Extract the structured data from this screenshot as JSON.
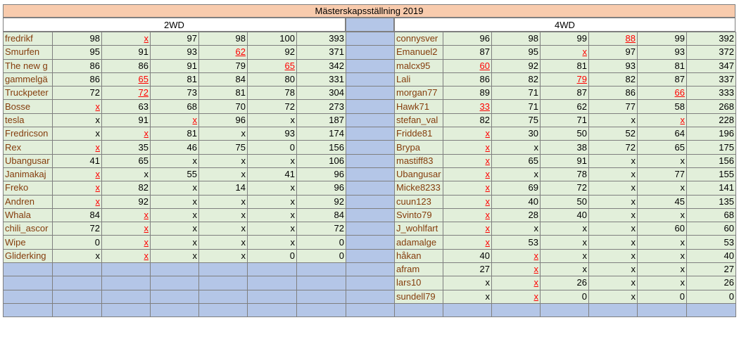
{
  "sheet": {
    "title": "Mästerskapsställning 2019",
    "left_header": "2WD",
    "right_header": "4WD",
    "left_rows": [
      [
        {
          "t": "fredrikf"
        },
        {
          "t": "98"
        },
        {
          "t": "x",
          "r": 1
        },
        {
          "t": "97"
        },
        {
          "t": "98"
        },
        {
          "t": "100"
        },
        {
          "t": "393"
        }
      ],
      [
        {
          "t": "Smurfen"
        },
        {
          "t": "95"
        },
        {
          "t": "91"
        },
        {
          "t": "93"
        },
        {
          "t": "62",
          "r": 1
        },
        {
          "t": "92"
        },
        {
          "t": "371"
        }
      ],
      [
        {
          "t": "The new g"
        },
        {
          "t": "86"
        },
        {
          "t": "86"
        },
        {
          "t": "91"
        },
        {
          "t": "79"
        },
        {
          "t": "65",
          "r": 1
        },
        {
          "t": "342"
        }
      ],
      [
        {
          "t": "gammelgä"
        },
        {
          "t": "86"
        },
        {
          "t": "65",
          "r": 1
        },
        {
          "t": "81"
        },
        {
          "t": "84"
        },
        {
          "t": "80"
        },
        {
          "t": "331"
        }
      ],
      [
        {
          "t": "Truckpeter"
        },
        {
          "t": "72"
        },
        {
          "t": "72",
          "r": 1
        },
        {
          "t": "73"
        },
        {
          "t": "81"
        },
        {
          "t": "78"
        },
        {
          "t": "304"
        }
      ],
      [
        {
          "t": "Bosse"
        },
        {
          "t": "x",
          "r": 1
        },
        {
          "t": "63"
        },
        {
          "t": "68"
        },
        {
          "t": "70"
        },
        {
          "t": "72"
        },
        {
          "t": "273"
        }
      ],
      [
        {
          "t": "tesla"
        },
        {
          "t": "x"
        },
        {
          "t": "91"
        },
        {
          "t": "x",
          "r": 1
        },
        {
          "t": "96"
        },
        {
          "t": "x"
        },
        {
          "t": "187"
        }
      ],
      [
        {
          "t": "Fredricson"
        },
        {
          "t": "x"
        },
        {
          "t": "x",
          "r": 1
        },
        {
          "t": "81"
        },
        {
          "t": "x"
        },
        {
          "t": "93"
        },
        {
          "t": "174"
        }
      ],
      [
        {
          "t": "Rex"
        },
        {
          "t": "x",
          "r": 1
        },
        {
          "t": "35"
        },
        {
          "t": "46"
        },
        {
          "t": "75"
        },
        {
          "t": "0"
        },
        {
          "t": "156"
        }
      ],
      [
        {
          "t": "Ubangusar"
        },
        {
          "t": "41"
        },
        {
          "t": "65"
        },
        {
          "t": "x"
        },
        {
          "t": "x"
        },
        {
          "t": "x"
        },
        {
          "t": "106"
        }
      ],
      [
        {
          "t": "Janimakaj"
        },
        {
          "t": "x",
          "r": 1
        },
        {
          "t": "x"
        },
        {
          "t": "55"
        },
        {
          "t": "x"
        },
        {
          "t": "41"
        },
        {
          "t": "96"
        }
      ],
      [
        {
          "t": "Freko"
        },
        {
          "t": "x",
          "r": 1
        },
        {
          "t": "82"
        },
        {
          "t": "x"
        },
        {
          "t": "14"
        },
        {
          "t": "x"
        },
        {
          "t": "96"
        }
      ],
      [
        {
          "t": "Andren"
        },
        {
          "t": "x",
          "r": 1
        },
        {
          "t": "92"
        },
        {
          "t": "x"
        },
        {
          "t": "x"
        },
        {
          "t": "x"
        },
        {
          "t": "92"
        }
      ],
      [
        {
          "t": "Whala"
        },
        {
          "t": "84"
        },
        {
          "t": "x",
          "r": 1
        },
        {
          "t": "x"
        },
        {
          "t": "x"
        },
        {
          "t": "x"
        },
        {
          "t": "84"
        }
      ],
      [
        {
          "t": "chili_ascor"
        },
        {
          "t": "72"
        },
        {
          "t": "x",
          "r": 1
        },
        {
          "t": "x"
        },
        {
          "t": "x"
        },
        {
          "t": "x"
        },
        {
          "t": "72"
        }
      ],
      [
        {
          "t": "Wipe"
        },
        {
          "t": "0"
        },
        {
          "t": "x",
          "r": 1
        },
        {
          "t": "x"
        },
        {
          "t": "x"
        },
        {
          "t": "x"
        },
        {
          "t": "0"
        }
      ],
      [
        {
          "t": "Gliderking"
        },
        {
          "t": "x"
        },
        {
          "t": "x",
          "r": 1
        },
        {
          "t": "x"
        },
        {
          "t": "x"
        },
        {
          "t": "0"
        },
        {
          "t": "0"
        }
      ]
    ],
    "right_rows": [
      [
        {
          "t": "connysver"
        },
        {
          "t": "96"
        },
        {
          "t": "98"
        },
        {
          "t": "99"
        },
        {
          "t": "88",
          "r": 1
        },
        {
          "t": "99"
        },
        {
          "t": "392"
        }
      ],
      [
        {
          "t": "Emanuel2"
        },
        {
          "t": "87"
        },
        {
          "t": "95"
        },
        {
          "t": "x",
          "r": 1
        },
        {
          "t": "97"
        },
        {
          "t": "93"
        },
        {
          "t": "372"
        }
      ],
      [
        {
          "t": "malcx95"
        },
        {
          "t": "60",
          "r": 1
        },
        {
          "t": "92"
        },
        {
          "t": "81"
        },
        {
          "t": "93"
        },
        {
          "t": "81"
        },
        {
          "t": "347"
        }
      ],
      [
        {
          "t": "Lali"
        },
        {
          "t": "86"
        },
        {
          "t": "82"
        },
        {
          "t": "79",
          "r": 1
        },
        {
          "t": "82"
        },
        {
          "t": "87"
        },
        {
          "t": "337"
        }
      ],
      [
        {
          "t": "morgan77"
        },
        {
          "t": "89"
        },
        {
          "t": "71"
        },
        {
          "t": "87"
        },
        {
          "t": "86"
        },
        {
          "t": "66",
          "r": 1
        },
        {
          "t": "333"
        }
      ],
      [
        {
          "t": "Hawk71"
        },
        {
          "t": "33",
          "r": 1
        },
        {
          "t": "71"
        },
        {
          "t": "62"
        },
        {
          "t": "77"
        },
        {
          "t": "58"
        },
        {
          "t": "268"
        }
      ],
      [
        {
          "t": "stefan_val"
        },
        {
          "t": "82"
        },
        {
          "t": "75"
        },
        {
          "t": "71"
        },
        {
          "t": "x"
        },
        {
          "t": "x",
          "r": 1
        },
        {
          "t": "228"
        }
      ],
      [
        {
          "t": "Fridde81"
        },
        {
          "t": "x",
          "r": 1
        },
        {
          "t": "30"
        },
        {
          "t": "50"
        },
        {
          "t": "52"
        },
        {
          "t": "64"
        },
        {
          "t": "196"
        }
      ],
      [
        {
          "t": "Brypa"
        },
        {
          "t": "x",
          "r": 1
        },
        {
          "t": "x"
        },
        {
          "t": "38"
        },
        {
          "t": "72"
        },
        {
          "t": "65"
        },
        {
          "t": "175"
        }
      ],
      [
        {
          "t": "mastiff83"
        },
        {
          "t": "x",
          "r": 1
        },
        {
          "t": "65"
        },
        {
          "t": "91"
        },
        {
          "t": "x"
        },
        {
          "t": "x"
        },
        {
          "t": "156"
        }
      ],
      [
        {
          "t": "Ubangusar"
        },
        {
          "t": "x",
          "r": 1
        },
        {
          "t": "x"
        },
        {
          "t": "78"
        },
        {
          "t": "x"
        },
        {
          "t": "77"
        },
        {
          "t": "155"
        }
      ],
      [
        {
          "t": "Micke8233"
        },
        {
          "t": "x",
          "r": 1
        },
        {
          "t": "69"
        },
        {
          "t": "72"
        },
        {
          "t": "x"
        },
        {
          "t": "x"
        },
        {
          "t": "141"
        }
      ],
      [
        {
          "t": "cuun123"
        },
        {
          "t": "x",
          "r": 1
        },
        {
          "t": "40"
        },
        {
          "t": "50"
        },
        {
          "t": "x"
        },
        {
          "t": "45"
        },
        {
          "t": "135"
        }
      ],
      [
        {
          "t": "Svinto79"
        },
        {
          "t": "x",
          "r": 1
        },
        {
          "t": "28"
        },
        {
          "t": "40"
        },
        {
          "t": "x"
        },
        {
          "t": "x"
        },
        {
          "t": "68"
        }
      ],
      [
        {
          "t": "J_wohlfart"
        },
        {
          "t": "x",
          "r": 1
        },
        {
          "t": "x"
        },
        {
          "t": "x"
        },
        {
          "t": "x"
        },
        {
          "t": "60"
        },
        {
          "t": "60"
        }
      ],
      [
        {
          "t": "adamalge"
        },
        {
          "t": "x",
          "r": 1
        },
        {
          "t": "53"
        },
        {
          "t": "x"
        },
        {
          "t": "x"
        },
        {
          "t": "x"
        },
        {
          "t": "53"
        }
      ],
      [
        {
          "t": "håkan"
        },
        {
          "t": "40"
        },
        {
          "t": "x",
          "r": 1
        },
        {
          "t": "x"
        },
        {
          "t": "x"
        },
        {
          "t": "x"
        },
        {
          "t": "40"
        }
      ],
      [
        {
          "t": "afram"
        },
        {
          "t": "27"
        },
        {
          "t": "x",
          "r": 1
        },
        {
          "t": "x"
        },
        {
          "t": "x"
        },
        {
          "t": "x"
        },
        {
          "t": "27"
        }
      ],
      [
        {
          "t": "lars10"
        },
        {
          "t": "x"
        },
        {
          "t": "x",
          "r": 1
        },
        {
          "t": "26"
        },
        {
          "t": "x"
        },
        {
          "t": "x"
        },
        {
          "t": "26"
        }
      ],
      [
        {
          "t": "sundell79"
        },
        {
          "t": "x"
        },
        {
          "t": "x",
          "r": 1
        },
        {
          "t": "0"
        },
        {
          "t": "x"
        },
        {
          "t": "0"
        },
        {
          "t": "0"
        }
      ]
    ],
    "total_rows": 21,
    "colors": {
      "title_bg": "#f8cbad",
      "cell_bg": "#e2efda",
      "empty_bg": "#b4c6e7",
      "name_text": "#843c0c",
      "strike_text": "#ff0000",
      "grid": "#7f7f7f"
    }
  }
}
